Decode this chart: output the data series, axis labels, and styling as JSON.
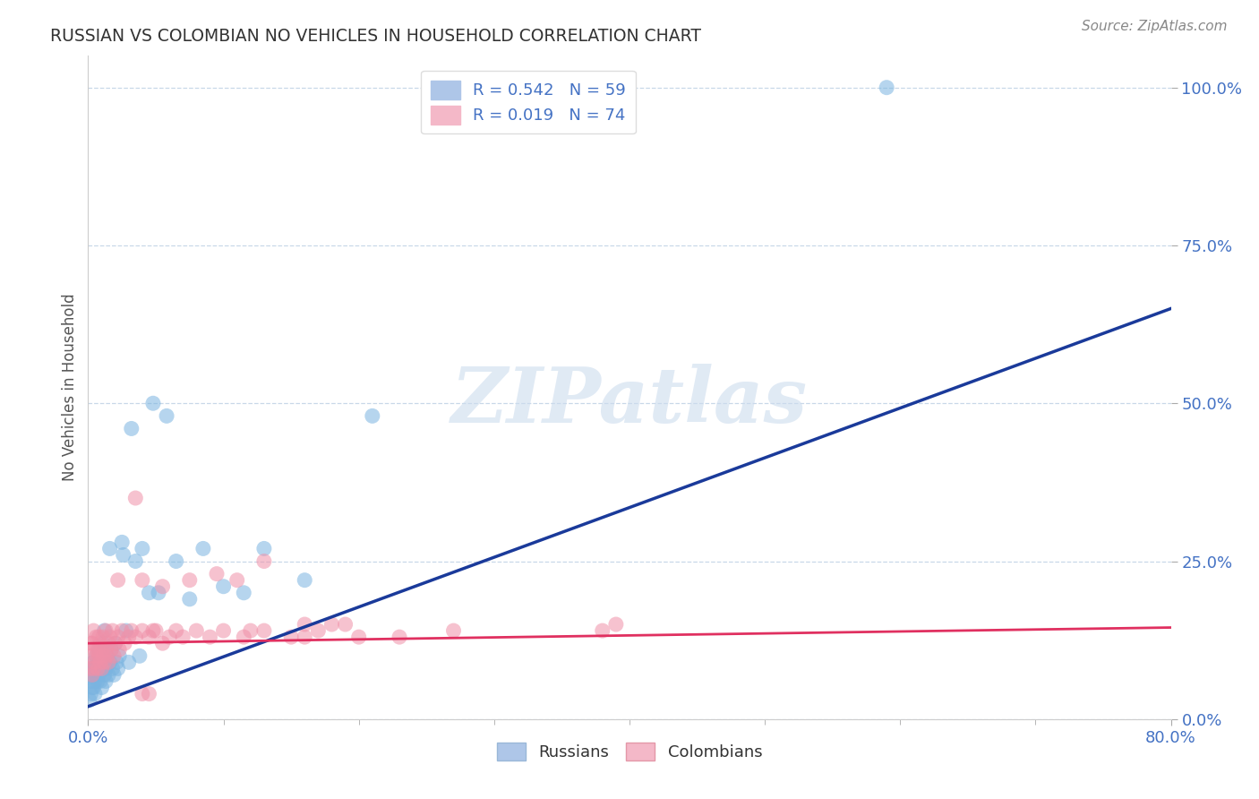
{
  "title": "RUSSIAN VS COLOMBIAN NO VEHICLES IN HOUSEHOLD CORRELATION CHART",
  "source": "Source: ZipAtlas.com",
  "ylabel_label": "No Vehicles in Household",
  "watermark": "ZIPatlas",
  "russian_color": "#7ab4e0",
  "colombian_color": "#f090a8",
  "russian_line_color": "#1a3a9a",
  "colombian_line_color": "#e03060",
  "background_color": "#ffffff",
  "grid_color": "#c8d8e8",
  "xlim": [
    0.0,
    0.8
  ],
  "ylim": [
    0.0,
    1.05
  ],
  "x_tick_positions": [
    0.0,
    0.8
  ],
  "x_tick_labels": [
    "0.0%",
    "80.0%"
  ],
  "y_tick_positions": [
    0.0,
    0.25,
    0.5,
    0.75,
    1.0
  ],
  "y_tick_labels": [
    "0.0%",
    "25.0%",
    "50.0%",
    "75.0%",
    "100.0%"
  ],
  "russians_x": [
    0.001,
    0.002,
    0.002,
    0.003,
    0.003,
    0.003,
    0.004,
    0.004,
    0.005,
    0.005,
    0.005,
    0.006,
    0.006,
    0.007,
    0.007,
    0.008,
    0.008,
    0.009,
    0.009,
    0.01,
    0.01,
    0.011,
    0.011,
    0.012,
    0.012,
    0.013,
    0.013,
    0.014,
    0.015,
    0.016,
    0.016,
    0.017,
    0.018,
    0.019,
    0.02,
    0.021,
    0.022,
    0.023,
    0.025,
    0.026,
    0.028,
    0.03,
    0.032,
    0.035,
    0.038,
    0.04,
    0.045,
    0.048,
    0.052,
    0.058,
    0.065,
    0.075,
    0.085,
    0.1,
    0.115,
    0.13,
    0.16,
    0.21,
    0.59
  ],
  "russians_y": [
    0.03,
    0.06,
    0.04,
    0.07,
    0.05,
    0.08,
    0.05,
    0.09,
    0.06,
    0.08,
    0.04,
    0.07,
    0.1,
    0.06,
    0.09,
    0.07,
    0.11,
    0.06,
    0.1,
    0.08,
    0.05,
    0.09,
    0.12,
    0.07,
    0.14,
    0.06,
    0.08,
    0.1,
    0.07,
    0.09,
    0.27,
    0.11,
    0.08,
    0.07,
    0.12,
    0.09,
    0.08,
    0.1,
    0.28,
    0.26,
    0.14,
    0.09,
    0.46,
    0.25,
    0.1,
    0.27,
    0.2,
    0.5,
    0.2,
    0.48,
    0.25,
    0.19,
    0.27,
    0.21,
    0.2,
    0.27,
    0.22,
    0.48,
    1.0
  ],
  "colombians_x": [
    0.001,
    0.002,
    0.002,
    0.003,
    0.003,
    0.004,
    0.004,
    0.005,
    0.005,
    0.006,
    0.006,
    0.007,
    0.007,
    0.008,
    0.008,
    0.009,
    0.009,
    0.01,
    0.01,
    0.011,
    0.011,
    0.012,
    0.013,
    0.013,
    0.014,
    0.015,
    0.015,
    0.016,
    0.017,
    0.018,
    0.019,
    0.02,
    0.022,
    0.023,
    0.025,
    0.027,
    0.03,
    0.032,
    0.035,
    0.04,
    0.045,
    0.05,
    0.055,
    0.06,
    0.065,
    0.07,
    0.08,
    0.09,
    0.1,
    0.115,
    0.13,
    0.15,
    0.17,
    0.2,
    0.23,
    0.27,
    0.13,
    0.16,
    0.19,
    0.04,
    0.045,
    0.18,
    0.38,
    0.39,
    0.12,
    0.16,
    0.035,
    0.055,
    0.075,
    0.04,
    0.095,
    0.11,
    0.048,
    0.022
  ],
  "colombians_y": [
    0.08,
    0.1,
    0.12,
    0.07,
    0.12,
    0.08,
    0.14,
    0.09,
    0.11,
    0.1,
    0.13,
    0.08,
    0.11,
    0.1,
    0.13,
    0.09,
    0.12,
    0.08,
    0.11,
    0.1,
    0.13,
    0.09,
    0.11,
    0.14,
    0.1,
    0.12,
    0.09,
    0.13,
    0.11,
    0.14,
    0.1,
    0.12,
    0.13,
    0.11,
    0.14,
    0.12,
    0.13,
    0.14,
    0.13,
    0.14,
    0.13,
    0.14,
    0.12,
    0.13,
    0.14,
    0.13,
    0.14,
    0.13,
    0.14,
    0.13,
    0.14,
    0.13,
    0.14,
    0.13,
    0.13,
    0.14,
    0.25,
    0.13,
    0.15,
    0.04,
    0.04,
    0.15,
    0.14,
    0.15,
    0.14,
    0.15,
    0.35,
    0.21,
    0.22,
    0.22,
    0.23,
    0.22,
    0.14,
    0.22
  ]
}
